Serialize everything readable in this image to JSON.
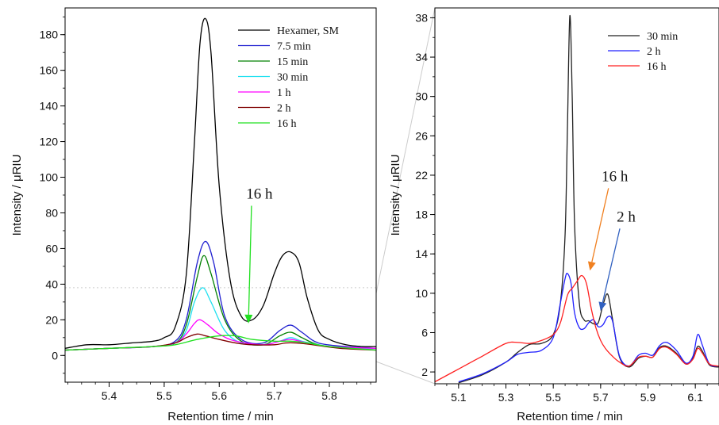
{
  "chart_data": [
    {
      "type": "line",
      "xlabel": "Retention time / min",
      "ylabel": "Intensity / μRIU",
      "xlim": [
        5.32,
        5.885
      ],
      "ylim": [
        -15,
        195
      ],
      "xticks": [
        "5.4",
        "5.5",
        "5.6",
        "5.7",
        "5.8"
      ],
      "yticks": [
        "0",
        "20",
        "40",
        "60",
        "80",
        "100",
        "120",
        "140",
        "160",
        "180"
      ],
      "legend_position": "top-right",
      "reference_line_y": 38,
      "series": [
        {
          "name": "Hexamer, SM",
          "color": "#000000",
          "x": [
            5.32,
            5.36,
            5.4,
            5.44,
            5.48,
            5.5,
            5.52,
            5.54,
            5.555,
            5.565,
            5.575,
            5.585,
            5.6,
            5.62,
            5.64,
            5.66,
            5.68,
            5.7,
            5.715,
            5.73,
            5.745,
            5.76,
            5.78,
            5.8,
            5.83,
            5.86,
            5.885
          ],
          "y": [
            4,
            6,
            6,
            7,
            8,
            10,
            16,
            45,
            120,
            175,
            189,
            170,
            95,
            42,
            22,
            20,
            28,
            46,
            56,
            58,
            52,
            32,
            14,
            9,
            6,
            5,
            5
          ]
        },
        {
          "name": "7.5 min",
          "color": "#2020d0",
          "x": [
            5.32,
            5.4,
            5.48,
            5.52,
            5.54,
            5.56,
            5.575,
            5.59,
            5.61,
            5.64,
            5.68,
            5.71,
            5.73,
            5.75,
            5.78,
            5.83,
            5.885
          ],
          "y": [
            3,
            4,
            5,
            8,
            20,
            52,
            64,
            52,
            22,
            9,
            7,
            14,
            17,
            13,
            7,
            5,
            4
          ]
        },
        {
          "name": "15 min",
          "color": "#008000",
          "x": [
            5.32,
            5.4,
            5.48,
            5.52,
            5.54,
            5.56,
            5.572,
            5.585,
            5.61,
            5.64,
            5.68,
            5.71,
            5.73,
            5.75,
            5.78,
            5.83,
            5.885
          ],
          "y": [
            3,
            4,
            5,
            7,
            17,
            44,
            56,
            46,
            20,
            8,
            6,
            11,
            13,
            10,
            6,
            4,
            4
          ]
        },
        {
          "name": "30 min",
          "color": "#20e0f0",
          "x": [
            5.32,
            5.4,
            5.48,
            5.52,
            5.54,
            5.555,
            5.57,
            5.585,
            5.61,
            5.64,
            5.68,
            5.71,
            5.73,
            5.75,
            5.78,
            5.83,
            5.885
          ],
          "y": [
            3,
            4,
            5,
            7,
            14,
            30,
            38,
            30,
            14,
            7,
            6,
            8,
            10,
            8,
            6,
            4,
            4
          ]
        },
        {
          "name": "1 h",
          "color": "#ff00ff",
          "x": [
            5.32,
            5.4,
            5.48,
            5.52,
            5.54,
            5.555,
            5.565,
            5.58,
            5.6,
            5.63,
            5.68,
            5.71,
            5.73,
            5.76,
            5.8,
            5.885
          ],
          "y": [
            3,
            4,
            5,
            7,
            12,
            18,
            20,
            17,
            12,
            8,
            6,
            8,
            9,
            7,
            5,
            4
          ]
        },
        {
          "name": "2 h",
          "color": "#800000",
          "x": [
            5.32,
            5.4,
            5.48,
            5.52,
            5.54,
            5.56,
            5.575,
            5.6,
            5.63,
            5.66,
            5.7,
            5.72,
            5.74,
            5.77,
            5.82,
            5.885
          ],
          "y": [
            3,
            4,
            5,
            7,
            10,
            12,
            11,
            9,
            7,
            6,
            6,
            7,
            7,
            6,
            4,
            3
          ]
        },
        {
          "name": "16 h",
          "color": "#20e020",
          "x": [
            5.32,
            5.4,
            5.48,
            5.52,
            5.56,
            5.6,
            5.63,
            5.66,
            5.7,
            5.73,
            5.76,
            5.8,
            5.885
          ],
          "y": [
            3,
            4,
            5,
            6,
            9,
            11,
            11,
            9,
            8,
            8,
            7,
            5,
            3
          ]
        }
      ],
      "annotations": [
        {
          "text": "16 h",
          "x": 5.673,
          "y": 88,
          "arrow_to": [
            5.653,
            18
          ],
          "color": "#20e020"
        }
      ]
    },
    {
      "type": "line",
      "xlabel": "Retention time / min",
      "ylabel": "Intensity / μRIU",
      "xlim": [
        5.0,
        6.2
      ],
      "ylim": [
        0.8,
        39
      ],
      "xticks": [
        "5.1",
        "5.3",
        "5.5",
        "5.7",
        "5.9",
        "6.1"
      ],
      "yticks": [
        "2",
        "6",
        "10",
        "14",
        "18",
        "22",
        "26",
        "30",
        "34",
        "38"
      ],
      "legend_position": "top-right",
      "series": [
        {
          "name": "30 min",
          "color": "#222222",
          "x": [
            5.1,
            5.2,
            5.3,
            5.35,
            5.4,
            5.45,
            5.5,
            5.53,
            5.55,
            5.56,
            5.57,
            5.58,
            5.59,
            5.61,
            5.63,
            5.65,
            5.67,
            5.69,
            5.71,
            5.73,
            5.75,
            5.78,
            5.82,
            5.86,
            5.89,
            5.92,
            5.95,
            5.98,
            6.02,
            6.06,
            6.09,
            6.11,
            6.13,
            6.16,
            6.2
          ],
          "y": [
            0.9,
            1.7,
            3.0,
            4.0,
            4.8,
            4.9,
            5.8,
            9.0,
            16,
            27,
            38.2,
            30,
            17,
            9.0,
            7.3,
            7.2,
            6.9,
            7.0,
            8.8,
            9.9,
            7.4,
            3.5,
            2.5,
            3.4,
            3.6,
            3.5,
            4.5,
            4.6,
            3.9,
            2.8,
            3.4,
            4.6,
            4.1,
            2.7,
            2.5
          ]
        },
        {
          "name": "2 h",
          "color": "#2020ff",
          "x": [
            5.1,
            5.2,
            5.3,
            5.35,
            5.4,
            5.45,
            5.5,
            5.53,
            5.55,
            5.56,
            5.575,
            5.59,
            5.61,
            5.63,
            5.65,
            5.67,
            5.69,
            5.71,
            5.73,
            5.75,
            5.78,
            5.82,
            5.86,
            5.89,
            5.92,
            5.95,
            5.98,
            6.02,
            6.06,
            6.09,
            6.11,
            6.13,
            6.16,
            6.2
          ],
          "y": [
            1.0,
            1.8,
            3.0,
            3.8,
            4.0,
            4.2,
            5.5,
            9.0,
            11.5,
            12.0,
            11.0,
            8.0,
            6.5,
            6.4,
            7.0,
            7.3,
            6.6,
            6.8,
            7.6,
            7.2,
            3.6,
            2.6,
            3.7,
            3.9,
            3.7,
            4.7,
            5.0,
            4.2,
            2.9,
            3.6,
            5.8,
            4.7,
            2.8,
            2.6
          ]
        },
        {
          "name": "16 h",
          "color": "#ff2020",
          "x": [
            5.0,
            5.1,
            5.2,
            5.3,
            5.35,
            5.4,
            5.45,
            5.5,
            5.53,
            5.56,
            5.58,
            5.6,
            5.62,
            5.64,
            5.66,
            5.68,
            5.7,
            5.72,
            5.75,
            5.78,
            5.82,
            5.86,
            5.89,
            5.92,
            5.95,
            5.98,
            6.02,
            6.06,
            6.09,
            6.11,
            6.13,
            6.16,
            6.2
          ],
          "y": [
            1.0,
            2.3,
            3.6,
            4.9,
            5.0,
            4.9,
            5.2,
            5.8,
            7.0,
            9.8,
            10.5,
            11.2,
            11.8,
            11.0,
            8.5,
            6.5,
            5.2,
            4.4,
            3.6,
            3.0,
            2.6,
            3.5,
            3.6,
            3.5,
            4.4,
            4.5,
            3.8,
            2.8,
            3.3,
            4.4,
            3.9,
            2.8,
            2.6
          ]
        }
      ],
      "annotations": [
        {
          "text": "16 h",
          "x": 5.76,
          "y": 21.4,
          "arrow_to": [
            5.655,
            12.3
          ],
          "color": "#f08020"
        },
        {
          "text": "2 h",
          "x": 5.808,
          "y": 17.3,
          "arrow_to": [
            5.7,
            8.2
          ],
          "color": "#3060c0"
        }
      ]
    }
  ]
}
